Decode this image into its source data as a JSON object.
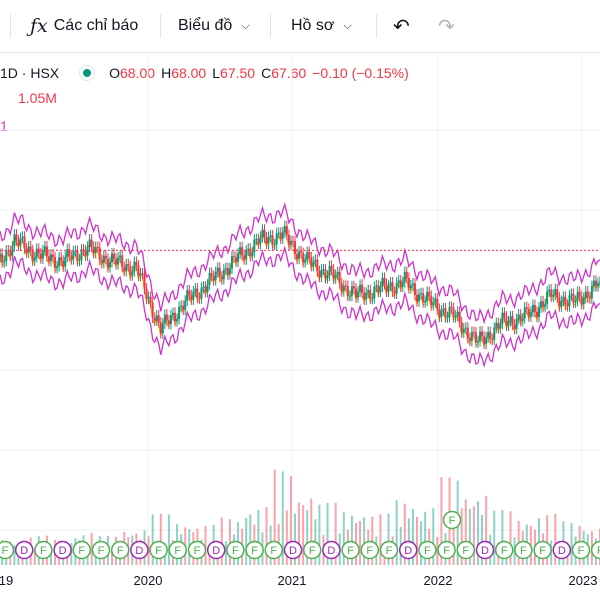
{
  "toolbar": {
    "indicators_label": "Các chỉ báo",
    "chart_label": "Biểu đồ",
    "profile_label": "Hồ sơ"
  },
  "legend": {
    "symbol": "1D · HSX",
    "open_label": "O",
    "open": "68.00",
    "high_label": "H",
    "high": "68.00",
    "low_label": "L",
    "low": "67.50",
    "close_label": "C",
    "close": "67.60",
    "change": "−0.10 (−0.15%)",
    "volume": "1.05M",
    "bb_label": "1"
  },
  "colors": {
    "up": "#089981",
    "down": "#f23645",
    "bands": "#cc33cc",
    "ma": "#f5b400",
    "grid": "#eef0f3",
    "last_price": "#f23645"
  },
  "event_markers": {
    "row": [
      "F",
      "D",
      "F",
      "D",
      "F",
      "F",
      "F",
      "D",
      "F",
      "F",
      "F",
      "D",
      "F",
      "F",
      "F",
      "D",
      "F",
      "D",
      "F",
      "F",
      "F",
      "D",
      "F",
      "F",
      "F",
      "D",
      "F",
      "F",
      "F",
      "D",
      "F",
      "F"
    ],
    "raised": [
      "F",
      "F"
    ]
  },
  "chart_data": {
    "type": "line",
    "title": "",
    "x_tick_labels": [
      "19",
      "2020",
      "2021",
      "2022",
      "2023"
    ],
    "x": [
      "2019-01",
      "2019-03",
      "2019-05",
      "2019-07",
      "2019-09",
      "2019-11",
      "2020-01",
      "2020-03",
      "2020-05",
      "2020-07",
      "2020-09",
      "2020-11",
      "2021-01",
      "2021-03",
      "2021-05",
      "2021-07",
      "2021-09",
      "2021-11",
      "2022-01",
      "2022-03",
      "2022-05",
      "2022-07",
      "2022-09",
      "2022-11",
      "2023-01",
      "2023-03"
    ],
    "series": [
      {
        "values": [
          64,
          69,
          67,
          66,
          68,
          66,
          65,
          56,
          60,
          63,
          66,
          69,
          70,
          66,
          64,
          61,
          62,
          63,
          60,
          58,
          54,
          57,
          58,
          61,
          60,
          63
        ]
      }
    ],
    "last_price": 67.6,
    "volume_series": {
      "values": [
        0.6,
        0.7,
        0.8,
        0.7,
        0.9,
        0.8,
        1.0,
        1.4,
        1.2,
        1.1,
        1.3,
        1.6,
        2.6,
        2.0,
        1.7,
        1.5,
        1.4,
        1.8,
        1.6,
        2.4,
        2.0,
        1.5,
        1.3,
        1.4,
        1.2,
        1.05
      ]
    }
  }
}
